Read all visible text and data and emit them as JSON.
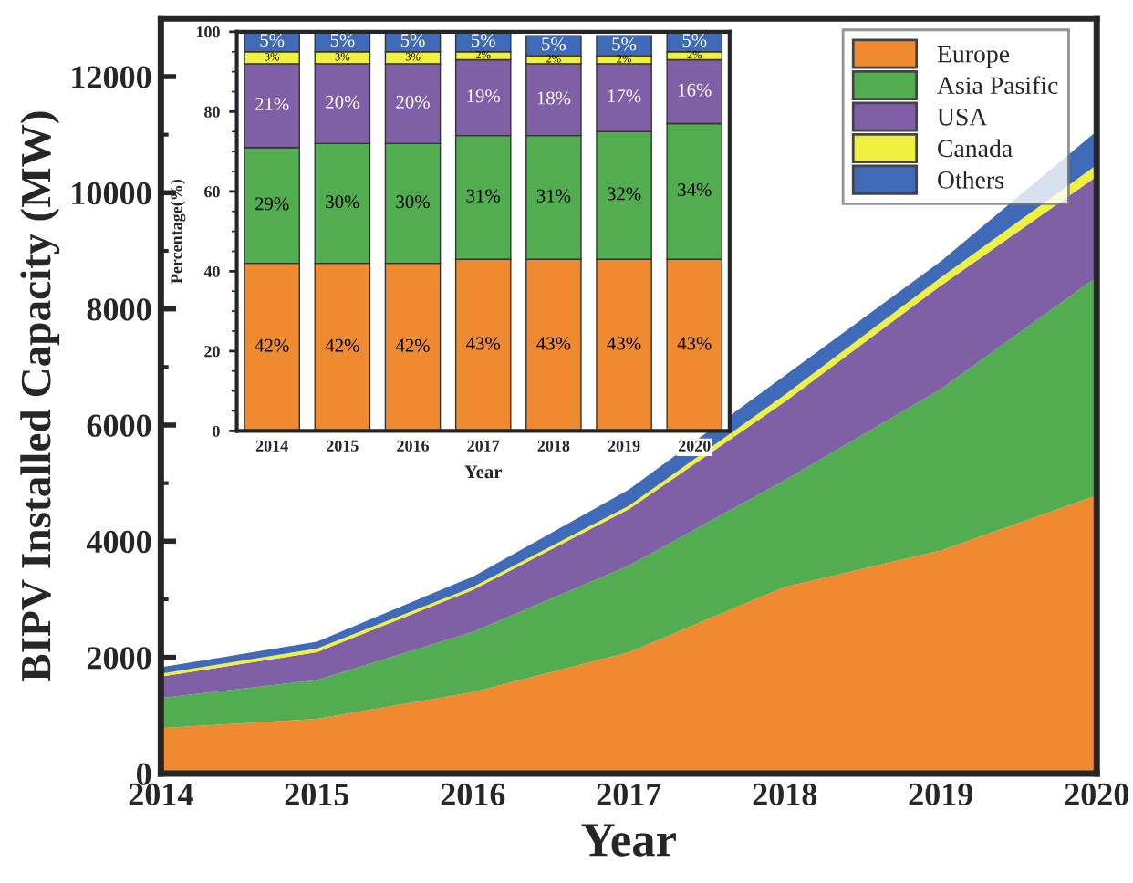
{
  "chart_data": [
    {
      "type": "area",
      "stacked": true,
      "xlabel": "Year",
      "ylabel": "BIPV Installed Capacity (MW)",
      "x": [
        2014,
        2015,
        2016,
        2017,
        2018,
        2019,
        2020
      ],
      "series": [
        {
          "name": "Europe",
          "color": "#f08a30",
          "values": [
            780,
            940,
            1400,
            2090,
            3210,
            3840,
            4790
          ]
        },
        {
          "name": "Asia Pasific",
          "color": "#52ac50",
          "values": [
            520,
            670,
            1040,
            1490,
            1840,
            2780,
            3760
          ]
        },
        {
          "name": "USA",
          "color": "#7f5fa6",
          "values": [
            370,
            480,
            720,
            970,
            1350,
            1780,
            1730
          ]
        },
        {
          "name": "Canada",
          "color": "#f0f040",
          "values": [
            50,
            60,
            50,
            60,
            120,
            140,
            200
          ]
        },
        {
          "name": "Others",
          "color": "#3f6ab8",
          "values": [
            110,
            120,
            180,
            280,
            330,
            280,
            580
          ]
        }
      ],
      "xlim": [
        2014,
        2020
      ],
      "xticks": [
        2014,
        2015,
        2016,
        2017,
        2018,
        2019,
        2020
      ],
      "ylim": [
        0,
        13000
      ],
      "yticks": [
        0,
        2000,
        4000,
        6000,
        8000,
        10000,
        12000
      ],
      "legend": "top right",
      "grid": false
    },
    {
      "type": "bar",
      "stacked": true,
      "xlabel": "Year",
      "ylabel": "Percentage(%)",
      "categories": [
        "2014",
        "2015",
        "2016",
        "2017",
        "2018",
        "2019",
        "2020"
      ],
      "series": [
        {
          "color": "#f08a30",
          "values": [
            42,
            42,
            42,
            43,
            43,
            43,
            43
          ],
          "value_labels": [
            "42%",
            "42%",
            "42%",
            "43%",
            "43%",
            "43%",
            "43%"
          ]
        },
        {
          "color": "#52ac50",
          "values": [
            29,
            30,
            30,
            31,
            31,
            32,
            34
          ],
          "value_labels": [
            "29%",
            "30%",
            "30%",
            "31%",
            "31%",
            "32%",
            "34%"
          ]
        },
        {
          "color": "#7f5fa6",
          "values": [
            21,
            20,
            20,
            19,
            18,
            17,
            16
          ],
          "value_labels": [
            "21%",
            "20%",
            "20%",
            "19%",
            "18%",
            "17%",
            "16%"
          ]
        },
        {
          "color": "#f0f040",
          "values": [
            3,
            3,
            3,
            2,
            2,
            2,
            2
          ],
          "value_labels": [
            "3%",
            "3%",
            "3%",
            "2%",
            "2%",
            "2%",
            "2%"
          ]
        },
        {
          "color": "#3f6ab8",
          "values": [
            5,
            5,
            5,
            5,
            5,
            5,
            5
          ],
          "value_labels": [
            "5%",
            "5%",
            "5%",
            "5%",
            "5%",
            "5%",
            "5%"
          ]
        }
      ],
      "ylim": [
        0,
        100
      ],
      "yticks": [
        0,
        20,
        40,
        60,
        80,
        100
      ],
      "grid": false
    }
  ]
}
